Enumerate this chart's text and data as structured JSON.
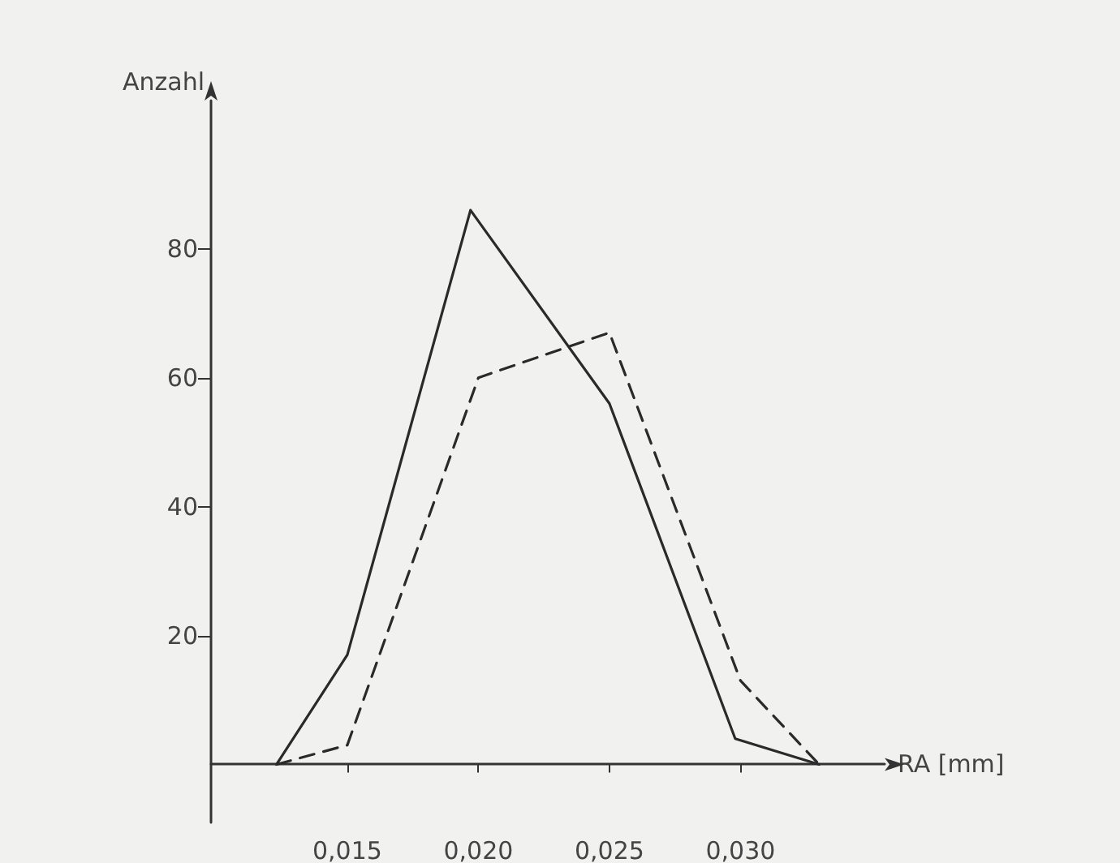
{
  "chart_data": {
    "type": "line",
    "xlabel": "RA [mm]",
    "ylabel": "Anzahl",
    "xlim": [
      0.0098,
      0.0355
    ],
    "ylim": [
      -9,
      103
    ],
    "xticks": [
      {
        "value": 0.015,
        "label": "0,015"
      },
      {
        "value": 0.02,
        "label": "0,020"
      },
      {
        "value": 0.025,
        "label": "0,025"
      },
      {
        "value": 0.03,
        "label": "0,030"
      }
    ],
    "yticks": [
      20,
      40,
      60,
      80
    ],
    "grid": false,
    "marker": "none",
    "series": [
      {
        "color": "#2a2a2a",
        "line_style": "solid",
        "x": [
          0.0123,
          0.015,
          0.0197,
          0.025,
          0.0298,
          0.033
        ],
        "values": [
          0,
          17,
          86,
          56,
          4,
          0
        ]
      },
      {
        "color": "#2a2a2a",
        "line_style": "dashed",
        "x": [
          0.0123,
          0.015,
          0.02,
          0.025,
          0.03,
          0.033
        ],
        "values": [
          0,
          3,
          60,
          67,
          13,
          0
        ]
      }
    ]
  }
}
